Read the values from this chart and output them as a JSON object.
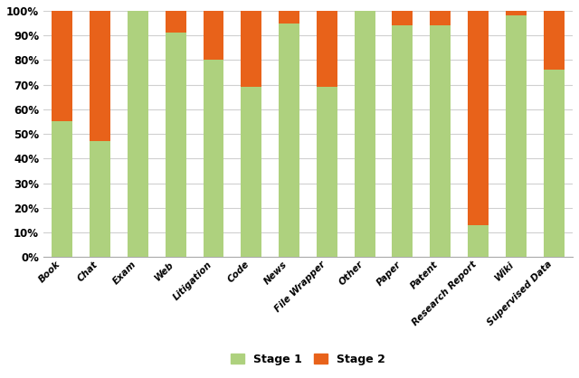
{
  "categories": [
    "Book",
    "Chat",
    "Exam",
    "Web",
    "Litigation",
    "Code",
    "News",
    "File Wrapper",
    "Other",
    "Paper",
    "Patent",
    "Research Report",
    "Wiki",
    "Supervised Data"
  ],
  "stage1": [
    55,
    47,
    100,
    91,
    80,
    69,
    95,
    69,
    100,
    94,
    94,
    13,
    98,
    76
  ],
  "stage2": [
    45,
    53,
    0,
    9,
    20,
    31,
    5,
    31,
    0,
    6,
    6,
    87,
    2,
    24
  ],
  "color_stage1": "#aed17e",
  "color_stage2": "#e8621a",
  "ylabel_ticks": [
    "0%",
    "10%",
    "20%",
    "30%",
    "40%",
    "50%",
    "60%",
    "70%",
    "80%",
    "90%",
    "100%"
  ],
  "ytick_vals": [
    0,
    10,
    20,
    30,
    40,
    50,
    60,
    70,
    80,
    90,
    100
  ],
  "legend_stage1": "Stage 1",
  "legend_stage2": "Stage 2",
  "background_color": "#ffffff",
  "grid_color": "#d0d0d0"
}
